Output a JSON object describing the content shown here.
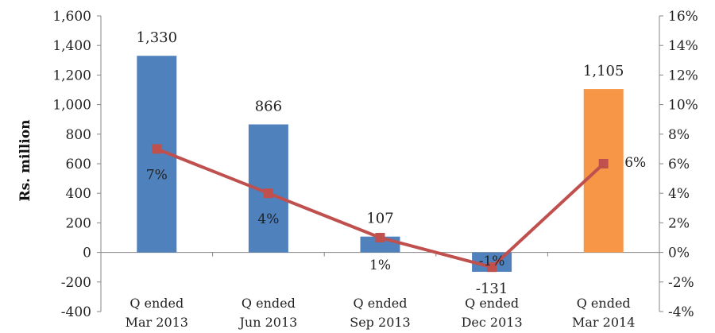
{
  "chart_data": {
    "type": "bar",
    "categories": [
      [
        "Q ended",
        "Mar 2013"
      ],
      [
        "Q ended",
        "Jun 2013"
      ],
      [
        "Q ended",
        "Sep 2013"
      ],
      [
        "Q ended",
        "Dec 2013"
      ],
      [
        "Q ended",
        "Mar 2014"
      ]
    ],
    "series": [
      {
        "type": "bar",
        "axis": "left",
        "values": [
          1330,
          866,
          107,
          -131,
          1105
        ],
        "labels": [
          "1,330",
          "866",
          "107",
          "-131",
          "1,105"
        ],
        "colors": [
          "#4f81bd",
          "#4f81bd",
          "#4f81bd",
          "#4f81bd",
          "#f79646"
        ]
      },
      {
        "type": "line",
        "axis": "right",
        "values": [
          7,
          4,
          1,
          -1,
          6
        ],
        "labels": [
          "7%",
          "4%",
          "1%",
          "-1%",
          "6%"
        ],
        "color": "#c0504d"
      }
    ],
    "ylabel": "Rs. million",
    "ylim": [
      -400,
      1600
    ],
    "y_ticks": [
      "-400",
      "-200",
      "0",
      "200",
      "400",
      "600",
      "800",
      "1,000",
      "1,200",
      "1,400",
      "1,600"
    ],
    "y2lim": [
      -4,
      16
    ],
    "y2_ticks": [
      "-4%",
      "-2%",
      "0%",
      "2%",
      "4%",
      "6%",
      "8%",
      "10%",
      "12%",
      "14%",
      "16%"
    ],
    "grid": false,
    "legend": "none"
  }
}
